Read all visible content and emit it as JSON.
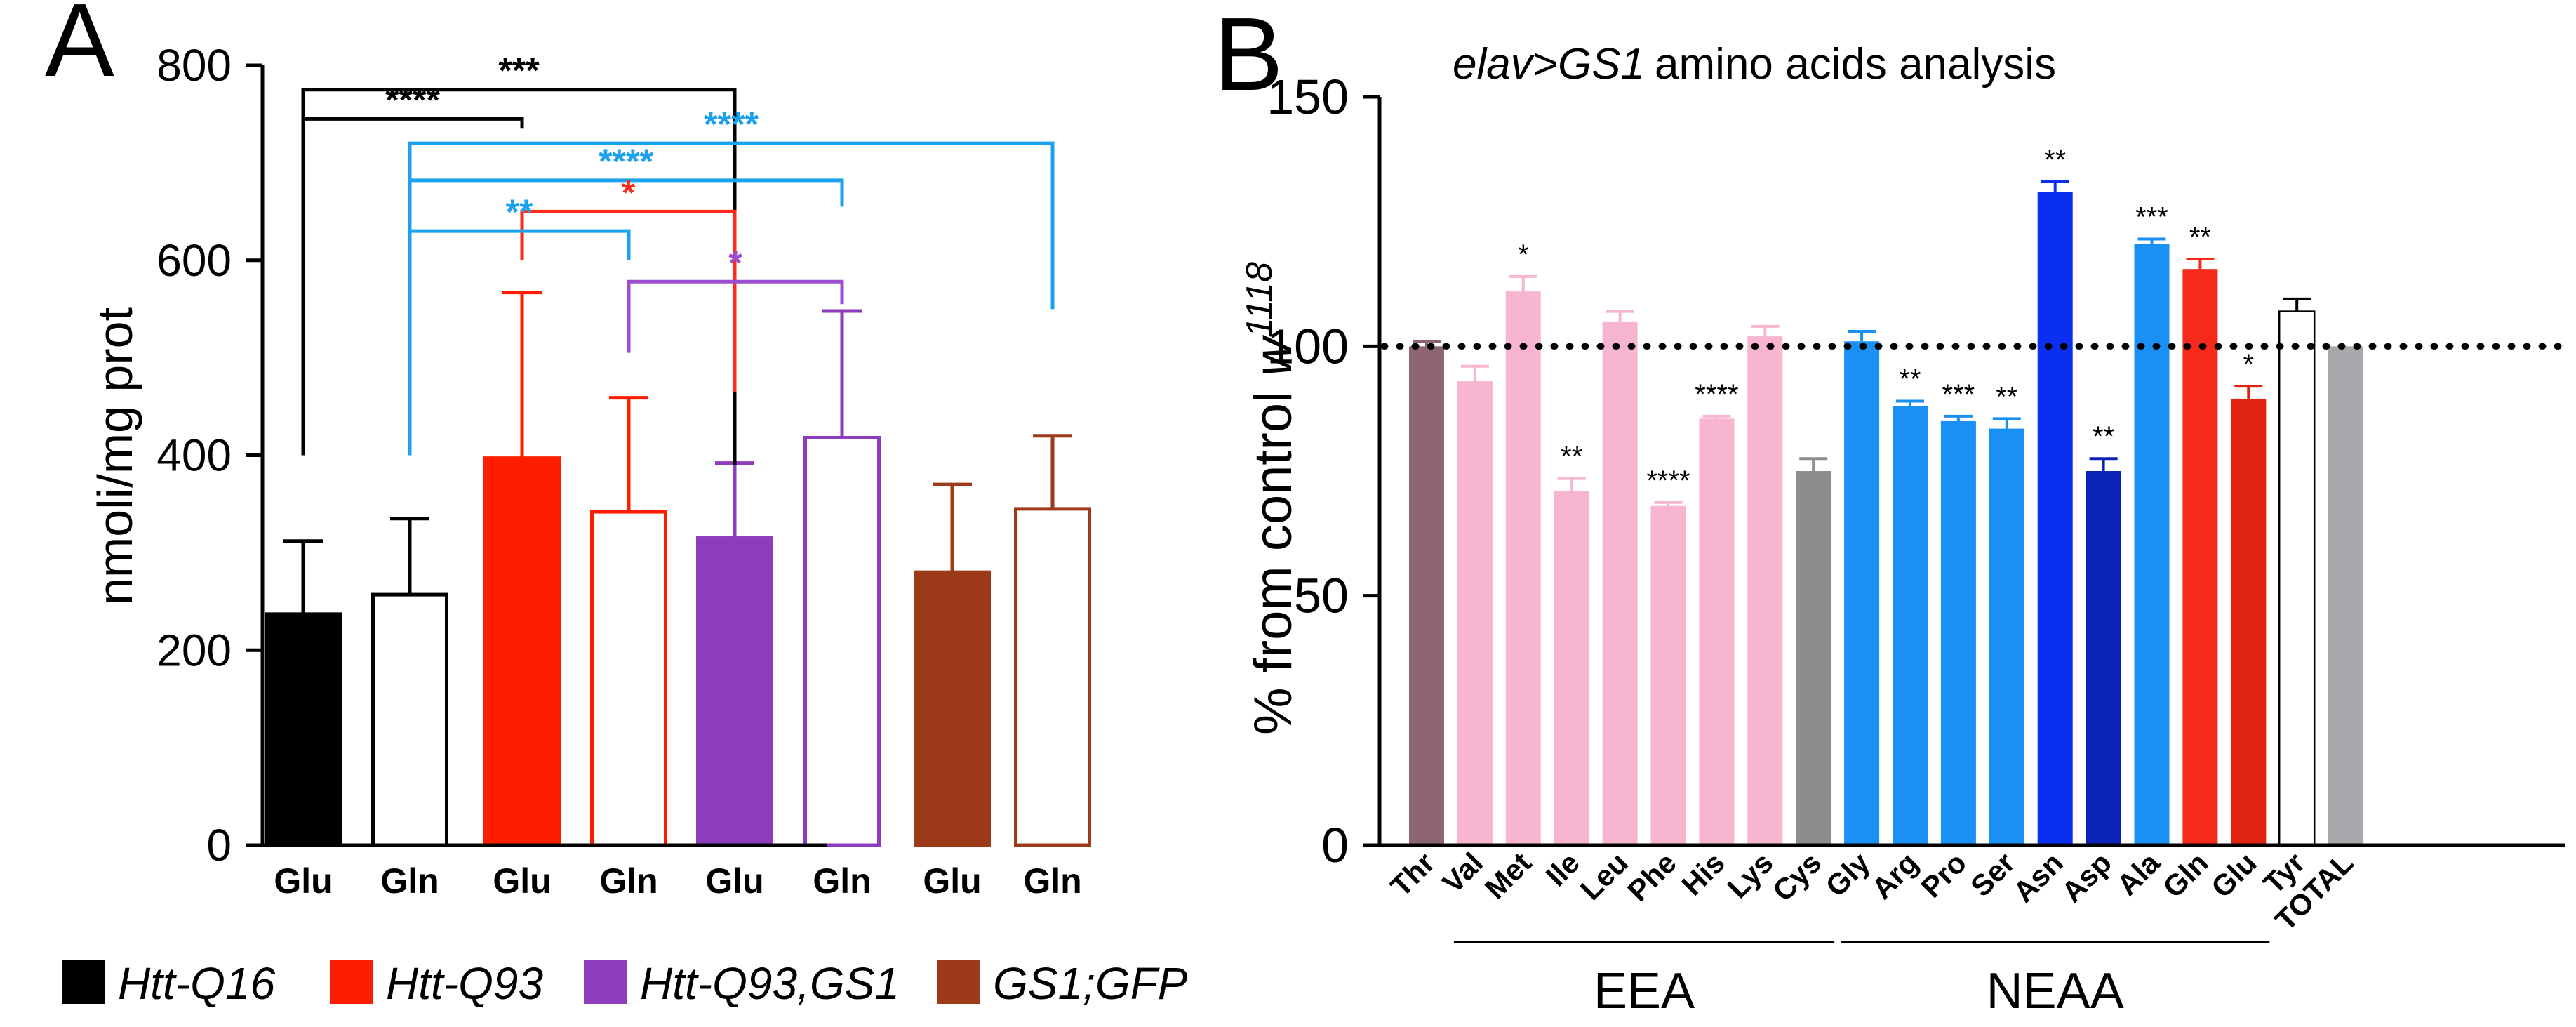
{
  "chart_data": [
    {
      "type": "bar",
      "panel_label": "A",
      "title": "",
      "xlabel": "",
      "ylabel": "nmoli/mg prot",
      "ylim": [
        0,
        800
      ],
      "yticks": [
        0,
        200,
        400,
        600,
        800
      ],
      "bars": [
        {
          "label": "Glu",
          "group": "Htt-Q16",
          "value": 237,
          "err": 75,
          "color": "#000000",
          "filled": true
        },
        {
          "label": "Gln",
          "group": "Htt-Q16",
          "value": 257,
          "err": 78,
          "color": "#000000",
          "filled": false
        },
        {
          "label": "Glu",
          "group": "Htt-Q93",
          "value": 397,
          "err": 170,
          "color": "#ff1d00",
          "filled": true
        },
        {
          "label": "Gln",
          "group": "Htt-Q93",
          "value": 342,
          "err": 117,
          "color": "#ff1d00",
          "filled": false
        },
        {
          "label": "Glu",
          "group": "Htt-Q93,GS1",
          "value": 315,
          "err": 77,
          "color": "#8e3cbe",
          "filled": true
        },
        {
          "label": "Gln",
          "group": "Htt-Q93,GS1",
          "value": 418,
          "err": 130,
          "color": "#8e3cbe",
          "filled": false
        },
        {
          "label": "Glu",
          "group": "GS1;GFP",
          "value": 280,
          "err": 90,
          "color": "#9c3a1a",
          "filled": true
        },
        {
          "label": "Gln",
          "group": "GS1;GFP",
          "value": 345,
          "err": 75,
          "color": "#9c3a1a",
          "filled": false
        }
      ],
      "comparisons": [
        {
          "from": 0,
          "to": 4,
          "text": "***",
          "color": "#000000",
          "level": 775,
          "drop_from": 400,
          "drop_to": 390
        },
        {
          "from": 0,
          "to": 2,
          "text": "****",
          "color": "#000000",
          "level": 745,
          "drop_from": 400,
          "drop_to": 735
        },
        {
          "from": 1,
          "to": 7,
          "text": "****",
          "color": "#1ca1ef",
          "level": 720,
          "drop_from": 400,
          "drop_to": 550
        },
        {
          "from": 1,
          "to": 5,
          "text": "****",
          "color": "#1ca1ef",
          "level": 682,
          "drop_from": 400,
          "drop_to": 655
        },
        {
          "from": 2,
          "to": 4,
          "text": "*",
          "color": "#ff2a1a",
          "level": 650,
          "drop_from": 600,
          "drop_to": 465
        },
        {
          "from": 1,
          "to": 3,
          "text": "**",
          "color": "#1ca1ef",
          "level": 630,
          "drop_from": 400,
          "drop_to": 600
        },
        {
          "from": 3,
          "to": 5,
          "text": "*",
          "color": "#9b4fd0",
          "level": 578,
          "drop_from": 505,
          "drop_to": 555
        }
      ],
      "legend": [
        {
          "label": "Htt-Q16",
          "color": "#000000"
        },
        {
          "label": "Htt-Q93",
          "color": "#ff1d00"
        },
        {
          "label": "Htt-Q93,GS1",
          "color": "#8e3cbe"
        },
        {
          "label": "GS1;GFP",
          "color": "#9c3a1a"
        }
      ],
      "legend_position": "bottom"
    },
    {
      "type": "bar",
      "panel_label": "B",
      "title": "amino acids analysis",
      "title_italic_prefix": "elav>GS1",
      "xlabel": "",
      "ylabel_text": "% from control ",
      "ylabel_italic": "w",
      "ylabel_sup": "1118",
      "ylim": [
        0,
        150
      ],
      "yticks": [
        0,
        50,
        100,
        150
      ],
      "reference_line": 100,
      "categories": [
        "Thr",
        "Val",
        "Met",
        "Ile",
        "Leu",
        "Phe",
        "His",
        "Lys",
        "Cys",
        "Gly",
        "Arg",
        "Pro",
        "Ser",
        "Asn",
        "Asp",
        "Ala",
        "Gln",
        "Glu",
        "Tyr",
        "TOTAL"
      ],
      "values": [
        100,
        93,
        111,
        71,
        105,
        68,
        85.5,
        102,
        75,
        101,
        88,
        85,
        83.5,
        131,
        75,
        120.5,
        115.5,
        89.5,
        107,
        100
      ],
      "errors": [
        1,
        3,
        3,
        2.5,
        2,
        0.7,
        0.5,
        2,
        2.5,
        2,
        1,
        1,
        2,
        2,
        2.5,
        1,
        2,
        2.5,
        2.5,
        0
      ],
      "significance": [
        "",
        "",
        "*",
        "**",
        "",
        "****",
        "****",
        "",
        "",
        "",
        "**",
        "***",
        "**",
        "**",
        "**",
        "***",
        "**",
        "*",
        "",
        ""
      ],
      "colors": [
        "#8c6571",
        "#f7b5d0",
        "#f7b5d0",
        "#f7b5d0",
        "#f7b5d0",
        "#f7b5d0",
        "#f7b5d0",
        "#f7b5d0",
        "#8f8c90",
        "#1a90f5",
        "#1a90f5",
        "#1a90f5",
        "#1a90f5",
        "#0a2ff0",
        "#0a22b5",
        "#1a90f5",
        "#f52a1a",
        "#e02210",
        "#ffffff",
        "#a8a7ab"
      ],
      "groups": [
        {
          "label": "EEA",
          "start": 1,
          "end": 8
        },
        {
          "label": "NEAA",
          "start": 9,
          "end": 17
        }
      ]
    }
  ]
}
